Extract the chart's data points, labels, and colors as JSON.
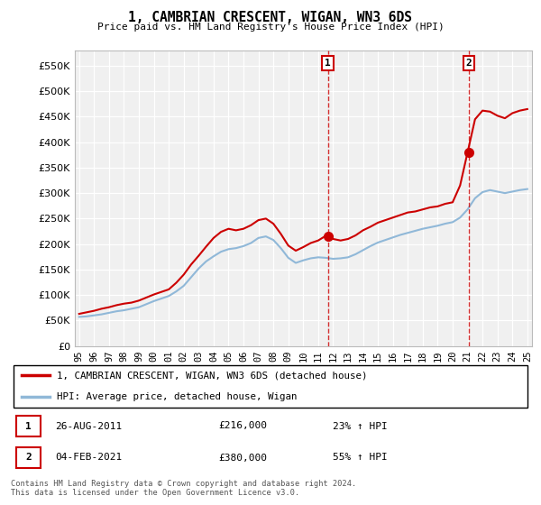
{
  "title": "1, CAMBRIAN CRESCENT, WIGAN, WN3 6DS",
  "subtitle": "Price paid vs. HM Land Registry's House Price Index (HPI)",
  "ytick_values": [
    0,
    50000,
    100000,
    150000,
    200000,
    250000,
    300000,
    350000,
    400000,
    450000,
    500000,
    550000
  ],
  "ylim": [
    0,
    580000
  ],
  "background_color": "#f0f0f0",
  "grid_color": "#ffffff",
  "hpi_line_color": "#90b8d8",
  "property_line_color": "#cc0000",
  "sale1": {
    "date": "26-AUG-2011",
    "price": 216000,
    "label": "1",
    "pct": "23% ↑ HPI",
    "x_year": 2011.65
  },
  "sale2": {
    "date": "04-FEB-2021",
    "price": 380000,
    "label": "2",
    "pct": "55% ↑ HPI",
    "x_year": 2021.09
  },
  "legend_line1": "1, CAMBRIAN CRESCENT, WIGAN, WN3 6DS (detached house)",
  "legend_line2": "HPI: Average price, detached house, Wigan",
  "footer": "Contains HM Land Registry data © Crown copyright and database right 2024.\nThis data is licensed under the Open Government Licence v3.0.",
  "hpi_data": {
    "years": [
      1995.0,
      1995.5,
      1996.0,
      1996.5,
      1997.0,
      1997.5,
      1998.0,
      1998.5,
      1999.0,
      1999.5,
      2000.0,
      2000.5,
      2001.0,
      2001.5,
      2002.0,
      2002.5,
      2003.0,
      2003.5,
      2004.0,
      2004.5,
      2005.0,
      2005.5,
      2006.0,
      2006.5,
      2007.0,
      2007.5,
      2008.0,
      2008.5,
      2009.0,
      2009.5,
      2010.0,
      2010.5,
      2011.0,
      2011.5,
      2012.0,
      2012.5,
      2013.0,
      2013.5,
      2014.0,
      2014.5,
      2015.0,
      2015.5,
      2016.0,
      2016.5,
      2017.0,
      2017.5,
      2018.0,
      2018.5,
      2019.0,
      2019.5,
      2020.0,
      2020.5,
      2021.0,
      2021.5,
      2022.0,
      2022.5,
      2023.0,
      2023.5,
      2024.0,
      2024.5,
      2025.0
    ],
    "values": [
      57000,
      58000,
      60000,
      62000,
      65000,
      68000,
      70000,
      73000,
      76000,
      82000,
      88000,
      93000,
      98000,
      107000,
      118000,
      135000,
      152000,
      166000,
      176000,
      185000,
      190000,
      192000,
      196000,
      202000,
      212000,
      215000,
      208000,
      192000,
      173000,
      163000,
      168000,
      172000,
      174000,
      173000,
      171000,
      172000,
      174000,
      180000,
      188000,
      196000,
      203000,
      208000,
      213000,
      218000,
      222000,
      226000,
      230000,
      233000,
      236000,
      240000,
      243000,
      252000,
      268000,
      290000,
      302000,
      306000,
      303000,
      300000,
      303000,
      306000,
      308000
    ]
  },
  "property_data": {
    "years": [
      1995.0,
      1995.5,
      1996.0,
      1996.5,
      1997.0,
      1997.5,
      1998.0,
      1998.5,
      1999.0,
      1999.5,
      2000.0,
      2000.5,
      2001.0,
      2001.5,
      2002.0,
      2002.5,
      2003.0,
      2003.5,
      2004.0,
      2004.5,
      2005.0,
      2005.5,
      2006.0,
      2006.5,
      2007.0,
      2007.5,
      2008.0,
      2008.5,
      2009.0,
      2009.5,
      2010.0,
      2010.5,
      2011.0,
      2011.5,
      2012.0,
      2012.5,
      2013.0,
      2013.5,
      2014.0,
      2014.5,
      2015.0,
      2015.5,
      2016.0,
      2016.5,
      2017.0,
      2017.5,
      2018.0,
      2018.5,
      2019.0,
      2019.5,
      2020.0,
      2020.5,
      2021.0,
      2021.5,
      2022.0,
      2022.5,
      2023.0,
      2023.5,
      2024.0,
      2024.5,
      2025.0
    ],
    "values": [
      63000,
      66000,
      69000,
      73000,
      76000,
      80000,
      83000,
      85000,
      89000,
      95000,
      101000,
      106000,
      111000,
      124000,
      140000,
      160000,
      177000,
      195000,
      212000,
      224000,
      230000,
      227000,
      230000,
      237000,
      247000,
      250000,
      240000,
      220000,
      197000,
      187000,
      194000,
      202000,
      207000,
      216000,
      210000,
      207000,
      210000,
      217000,
      227000,
      234000,
      242000,
      247000,
      252000,
      257000,
      262000,
      264000,
      268000,
      272000,
      274000,
      279000,
      282000,
      315000,
      380000,
      445000,
      462000,
      460000,
      452000,
      447000,
      457000,
      462000,
      465000
    ]
  },
  "xlim": [
    1994.7,
    2025.3
  ],
  "xtick_years": [
    1995,
    1996,
    1997,
    1998,
    1999,
    2000,
    2001,
    2002,
    2003,
    2004,
    2005,
    2006,
    2007,
    2008,
    2009,
    2010,
    2011,
    2012,
    2013,
    2014,
    2015,
    2016,
    2017,
    2018,
    2019,
    2020,
    2021,
    2022,
    2023,
    2024,
    2025
  ]
}
